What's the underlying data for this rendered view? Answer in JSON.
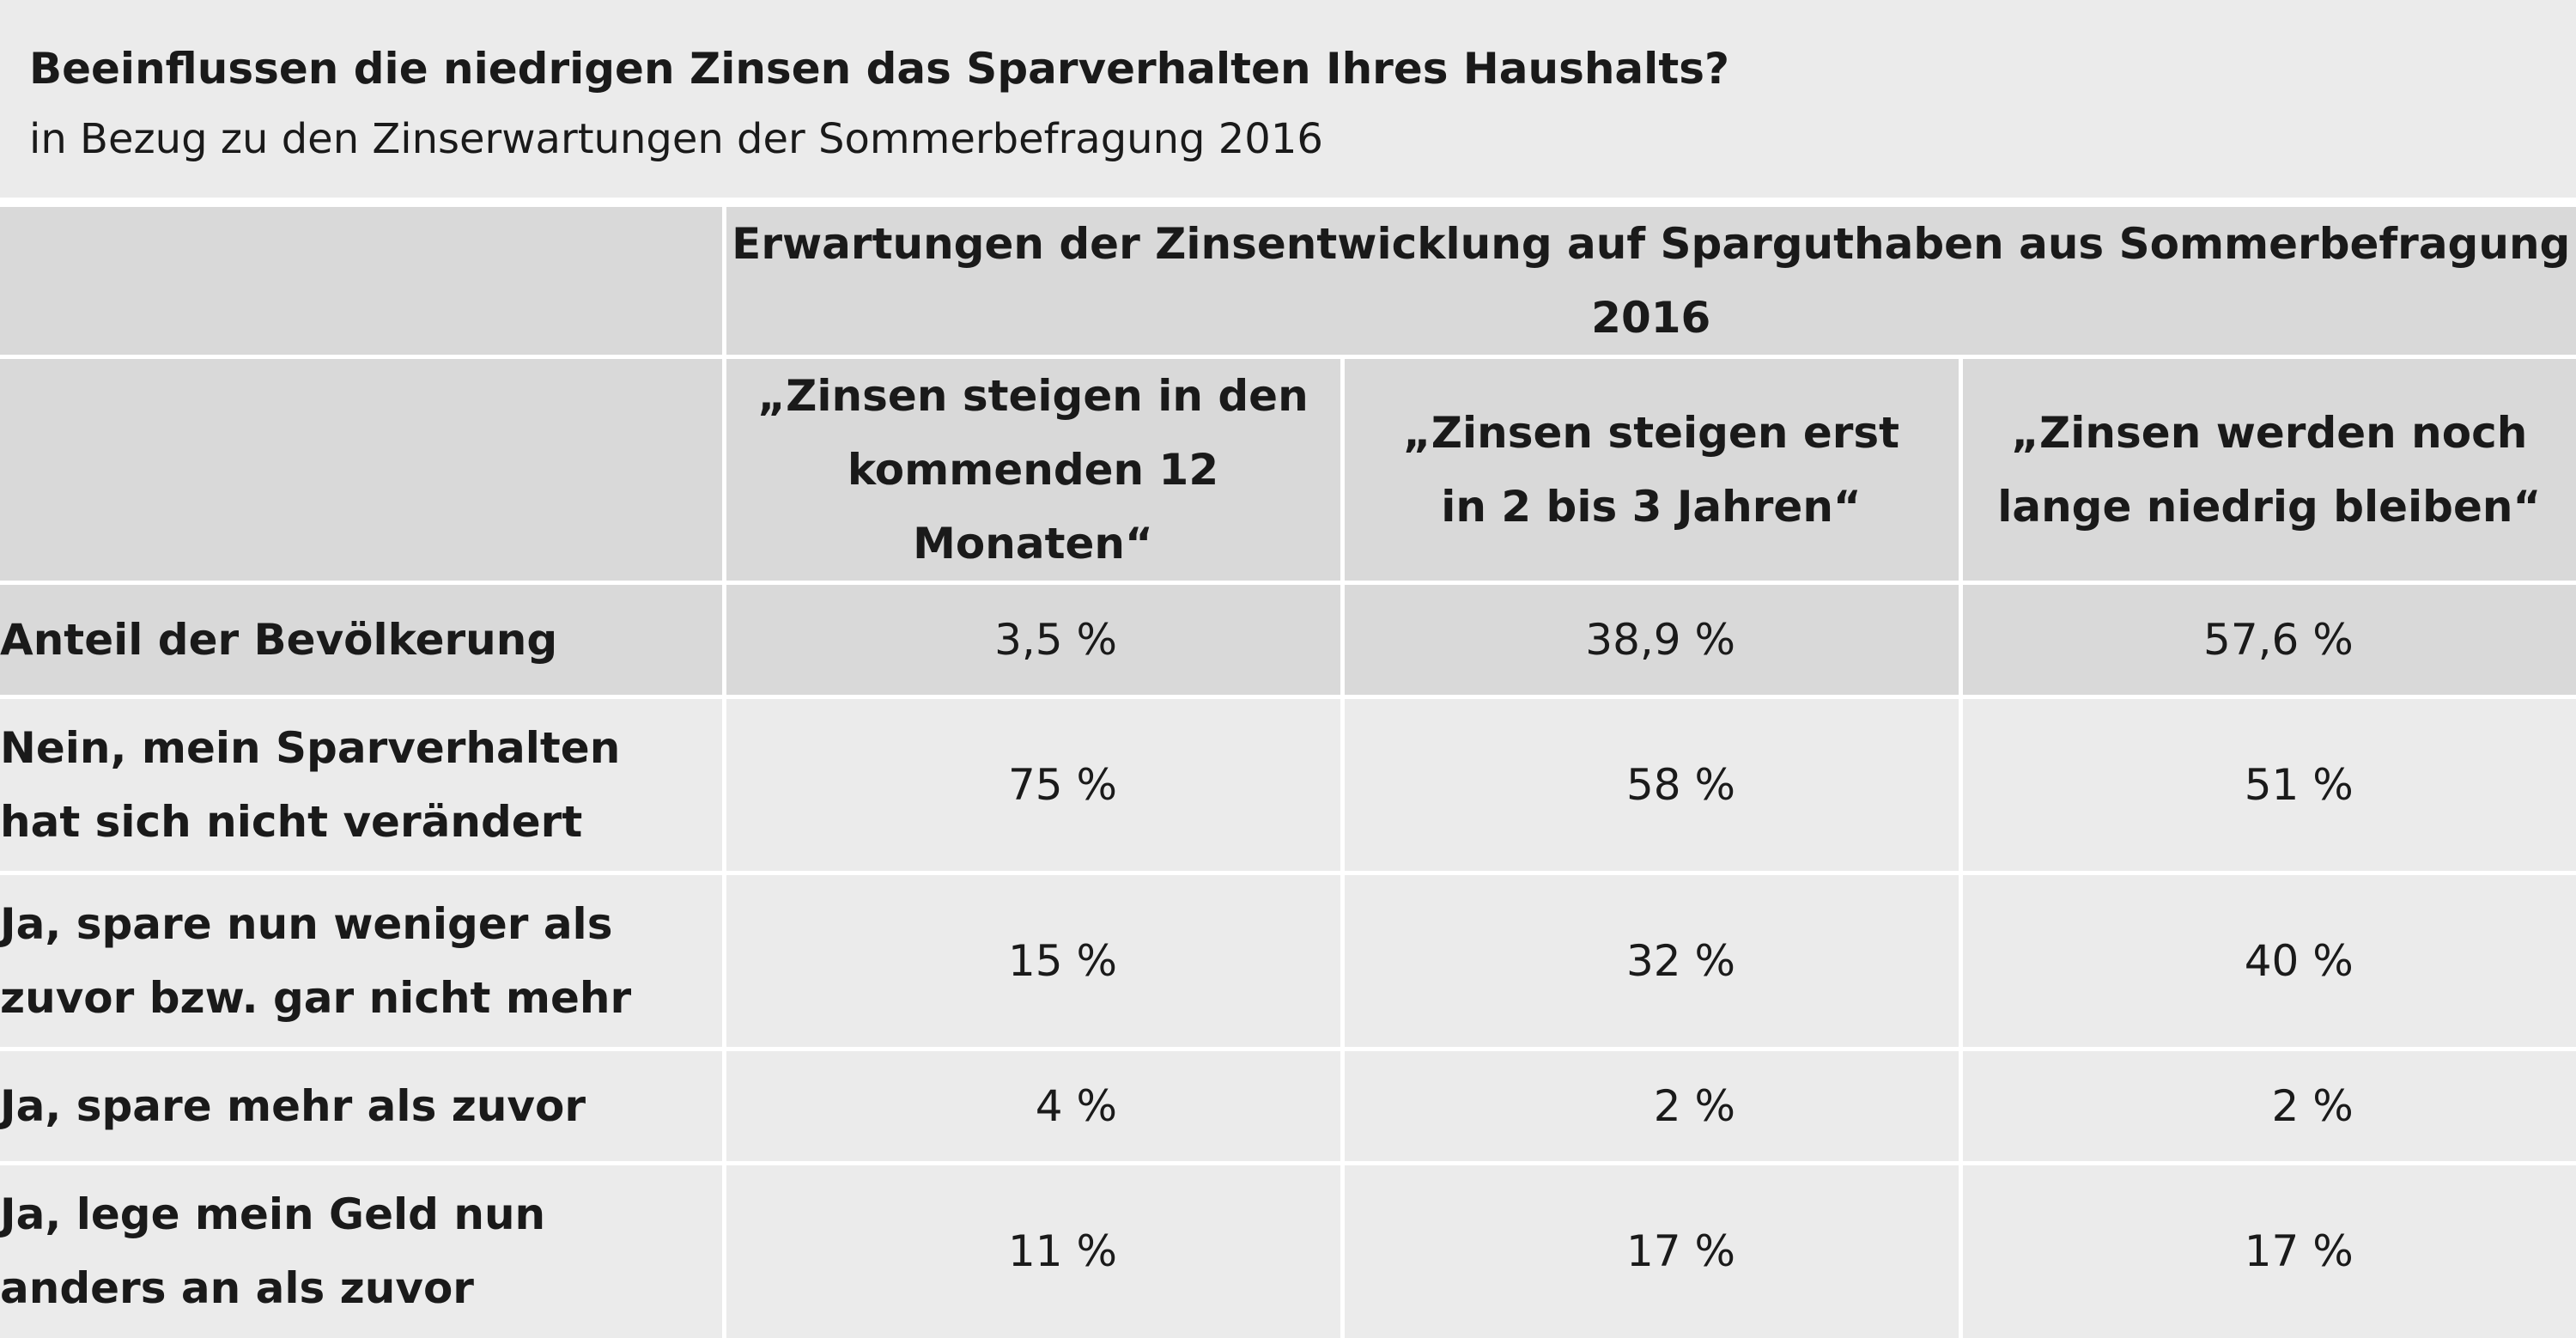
{
  "title": "Beeinflussen die niedrigen Zinsen das Sparverhalten Ihres Haushalts?",
  "subtitle": "in Bezug zu den Zinserwartungen der Sommerbefragung 2016",
  "table": {
    "group_header": "Erwartungen der Zinsentwicklung auf Sparguthaben aus Sommerbefragung 2016",
    "columns": [
      {
        "line1": "„Zinsen steigen in den",
        "line2": "kommenden 12 Monaten“"
      },
      {
        "line1": "„Zinsen steigen erst",
        "line2": "in 2 bis 3 Jahren“"
      },
      {
        "line1": "„Zinsen werden noch",
        "line2": "lange niedrig bleiben“"
      }
    ],
    "rows": [
      {
        "label_line1": "Anteil der Bevölkerung",
        "label_line2": "",
        "values": [
          "3,5 %",
          "38,9 %",
          "57,6 %"
        ]
      },
      {
        "label_line1": "Nein, mein Sparverhalten",
        "label_line2": "hat sich nicht verändert",
        "values": [
          "75 %",
          "58 %",
          "51 %"
        ]
      },
      {
        "label_line1": "Ja, spare nun weniger als",
        "label_line2": "zuvor bzw. gar nicht mehr",
        "values": [
          "15 %",
          "32 %",
          "40 %"
        ]
      },
      {
        "label_line1": "Ja, spare mehr als zuvor",
        "label_line2": "",
        "values": [
          "4 %",
          "2 %",
          "2 %"
        ]
      },
      {
        "label_line1": "Ja, lege mein Geld nun",
        "label_line2": "anders an als zuvor",
        "values": [
          "11 %",
          "17 %",
          "17 %"
        ]
      }
    ]
  }
}
